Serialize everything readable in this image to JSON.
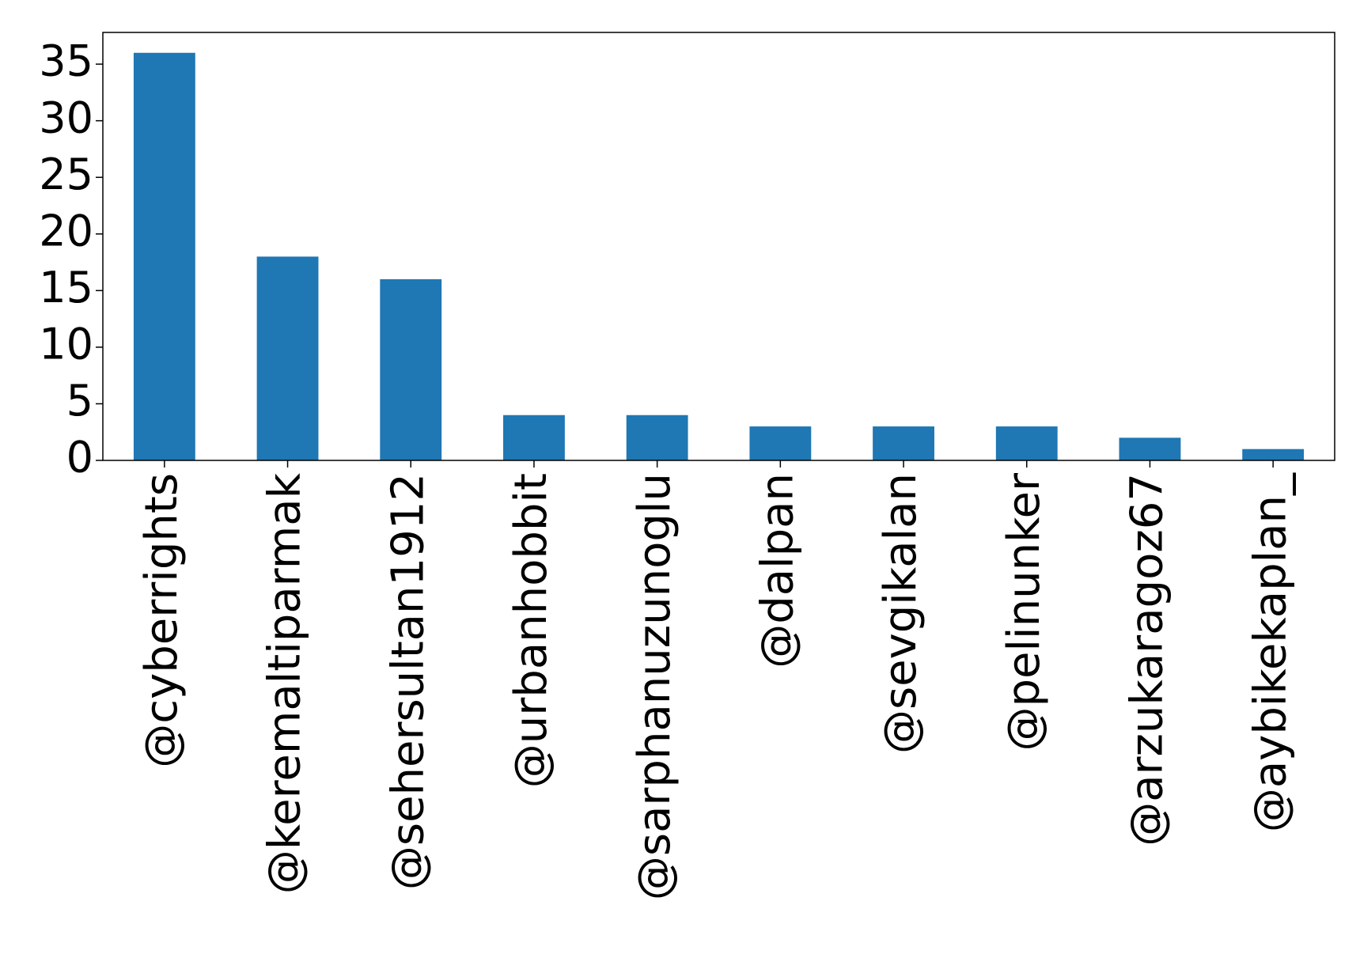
{
  "chart_data": {
    "type": "bar",
    "categories": [
      "@cyberrights",
      "@keremaltiparmak",
      "@sehersultan1912",
      "@urbanhobbit",
      "@sarphanuzunoglu",
      "@dalpan",
      "@sevgikalan",
      "@pelinunker",
      "@arzukaragoz67",
      "@aybikekaplan_"
    ],
    "values": [
      36,
      18,
      16,
      4,
      4,
      3,
      3,
      3,
      2,
      1
    ],
    "color": "#1f77b4",
    "ylim": [
      0,
      37.8
    ],
    "yticks": [
      0,
      5,
      10,
      15,
      20,
      25,
      30,
      35
    ],
    "grid": false
  }
}
